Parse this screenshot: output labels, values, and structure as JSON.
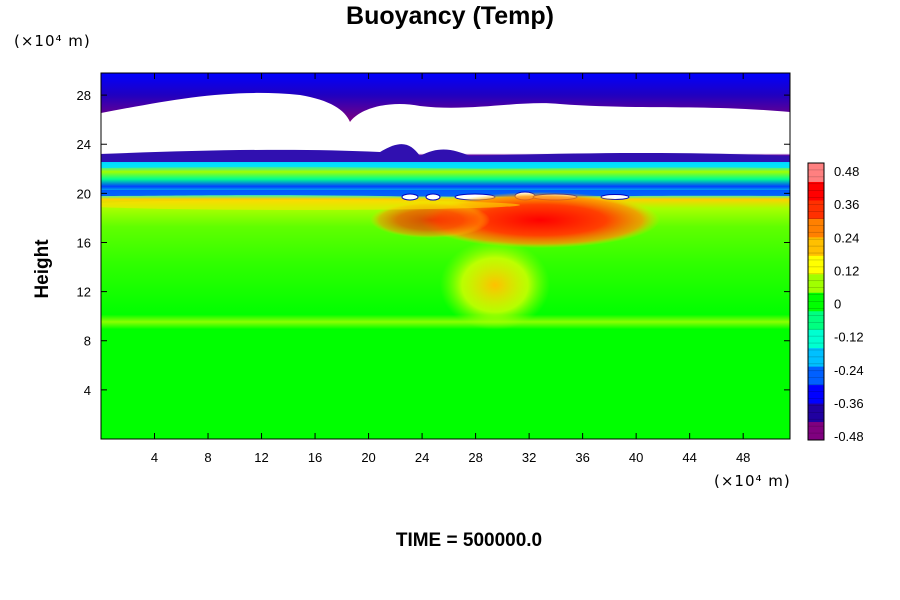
{
  "chart_data": {
    "type": "heatmap",
    "title": "Buoyancy (Temp)",
    "ylabel": "Height",
    "x_unit": "(×10⁴ m)",
    "y_unit": "(×10⁴ m)",
    "footer": "TIME = 500000.0",
    "xlim": [
      0,
      51.5
    ],
    "ylim": [
      0,
      29.8
    ],
    "x_ticks": [
      "4",
      "8",
      "12",
      "16",
      "20",
      "24",
      "28",
      "32",
      "36",
      "40",
      "44",
      "48"
    ],
    "x_tick_values": [
      4,
      8,
      12,
      16,
      20,
      24,
      28,
      32,
      36,
      40,
      44,
      48
    ],
    "y_ticks": [
      "4",
      "8",
      "12",
      "16",
      "20",
      "24",
      "28"
    ],
    "y_tick_values": [
      4,
      8,
      12,
      16,
      20,
      24,
      28
    ],
    "colorbar": {
      "labels": [
        "0.48",
        "0.36",
        "0.24",
        "0.12",
        "0",
        "-0.12",
        "-0.24",
        "-0.36",
        "-0.48"
      ],
      "min": -0.48,
      "max": 0.48,
      "colors": [
        "#7f007f",
        "#2000a0",
        "#0000ff",
        "#0060ff",
        "#00c0ff",
        "#00ffd0",
        "#00ff80",
        "#00ff00",
        "#a0ff00",
        "#ffff00",
        "#ffc000",
        "#ff8000",
        "#ff3000",
        "#ff0000",
        "#ff8080"
      ]
    }
  }
}
